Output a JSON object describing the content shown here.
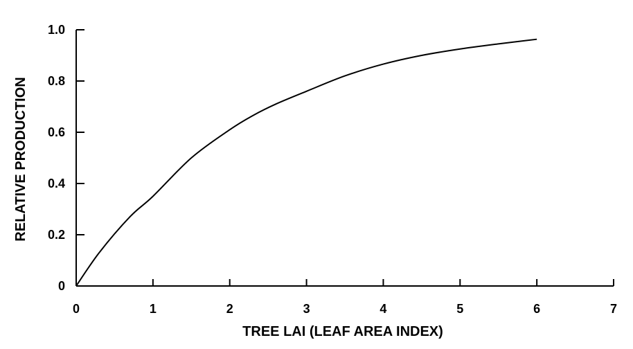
{
  "chart_data": {
    "type": "line",
    "title": "",
    "xlabel": "TREE LAI (LEAF AREA INDEX)",
    "ylabel": "RELATIVE PRODUCTION",
    "xlim": [
      0,
      7
    ],
    "ylim": [
      0,
      1.0
    ],
    "x_ticks": [
      0,
      1,
      2,
      3,
      4,
      5,
      6,
      7
    ],
    "x_tick_labels": [
      "0",
      "1",
      "2",
      "3",
      "4",
      "5",
      "6",
      "7"
    ],
    "y_ticks": [
      0,
      0.2,
      0.4,
      0.6,
      0.8,
      1.0
    ],
    "y_tick_labels": [
      "0",
      "0.2",
      "0.4",
      "0.6",
      "0.8",
      "1.0"
    ],
    "grid": false,
    "series": [
      {
        "color": "#000000",
        "x": [
          0,
          0.3,
          0.7,
          1.0,
          1.5,
          2.0,
          2.3,
          2.6,
          3.0,
          3.5,
          4.0,
          4.5,
          5.0,
          5.5,
          6.0
        ],
        "y": [
          0,
          0.13,
          0.27,
          0.35,
          0.5,
          0.61,
          0.665,
          0.71,
          0.76,
          0.82,
          0.866,
          0.9,
          0.925,
          0.945,
          0.963
        ]
      }
    ]
  }
}
